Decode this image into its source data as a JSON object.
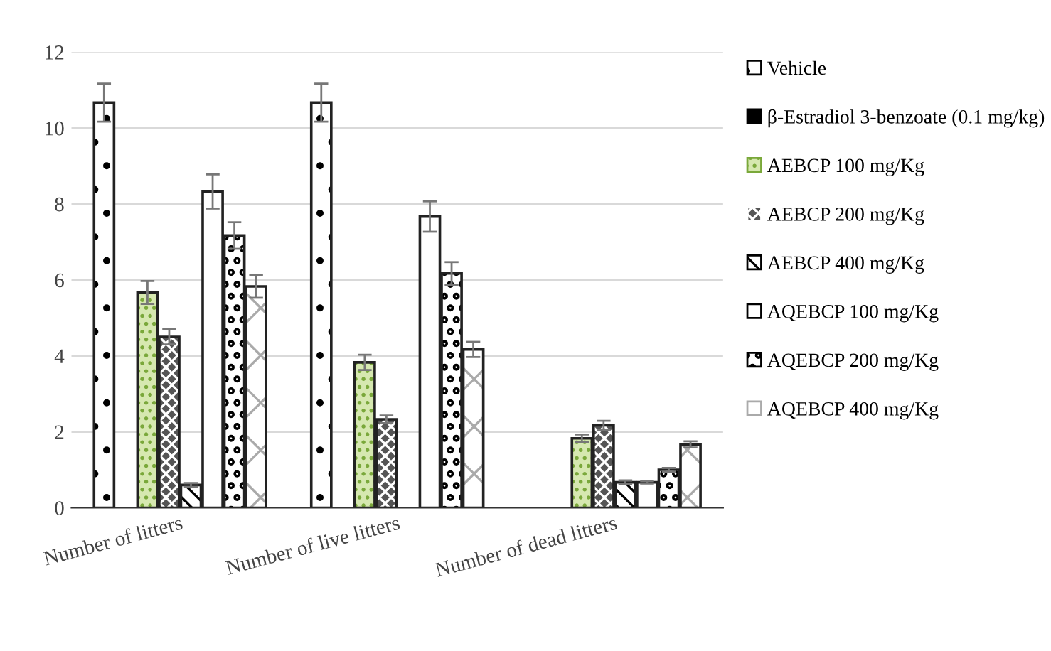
{
  "chart_data": {
    "type": "bar",
    "categories": [
      "Number of litters",
      "Number of live litters",
      "Number of dead litters"
    ],
    "series": [
      {
        "name": "Vehicle",
        "color": "#ffffff",
        "values": [
          10.67,
          10.67,
          0
        ],
        "errors": [
          0.5,
          0.5,
          null
        ]
      },
      {
        "name": "β-Estradiol 3-benzoate (0.1 mg/kg)",
        "color": "#000000",
        "values": [
          0,
          0,
          0
        ],
        "errors": [
          null,
          null,
          null
        ]
      },
      {
        "name": "AEBCP 100 mg/Kg",
        "color": "#d6e8b0",
        "values": [
          5.67,
          3.83,
          1.83
        ],
        "errors": [
          0.3,
          0.2,
          0.1
        ]
      },
      {
        "name": "AEBCP 200 mg/Kg",
        "color": "#555555",
        "values": [
          4.5,
          2.33,
          2.17
        ],
        "errors": [
          0.2,
          0.1,
          0.12
        ]
      },
      {
        "name": "AEBCP 400 mg/Kg",
        "color": "#ffffff",
        "values": [
          0.6,
          0,
          0.67
        ],
        "errors": [
          0.05,
          null,
          0.05
        ]
      },
      {
        "name": "AQEBCP 100 mg/Kg",
        "color": "#ffffff",
        "values": [
          8.33,
          7.67,
          0.67
        ],
        "errors": [
          0.45,
          0.4,
          0.03
        ]
      },
      {
        "name": "AQEBCP 200 mg/Kg",
        "color": "#ffffff",
        "values": [
          7.17,
          6.17,
          1.0
        ],
        "errors": [
          0.35,
          0.3,
          0.05
        ]
      },
      {
        "name": "AQEBCP 400 mg/Kg",
        "color": "#ffffff",
        "values": [
          5.83,
          4.17,
          1.67
        ],
        "errors": [
          0.3,
          0.2,
          0.08
        ]
      }
    ],
    "ylim": [
      0,
      12
    ],
    "yticks": [
      0,
      2,
      4,
      6,
      8,
      10,
      12
    ],
    "grid": "y",
    "legend": "right"
  }
}
